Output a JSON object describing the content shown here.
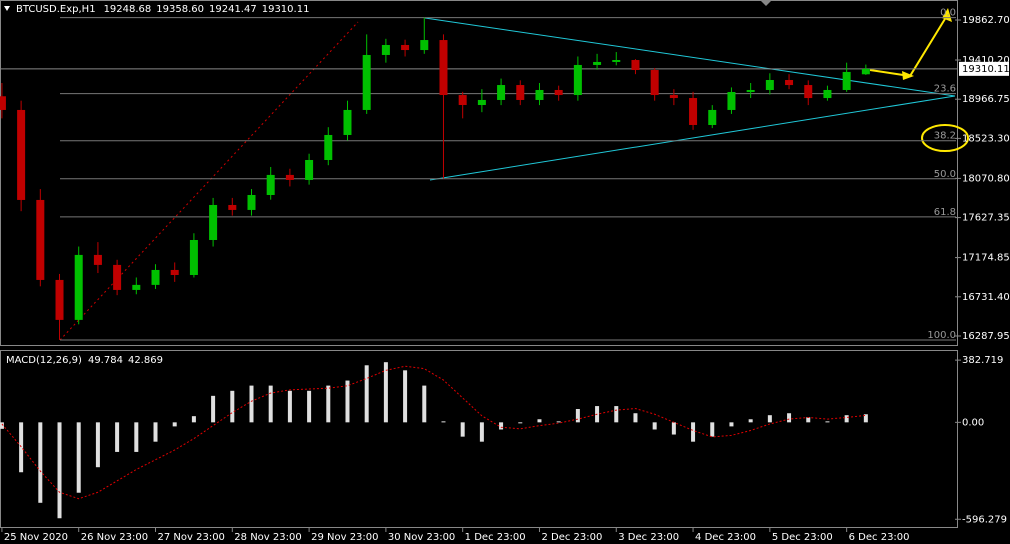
{
  "chart_data": [
    {
      "type": "candlestick",
      "title": "BTCUSD.Exp,H1",
      "title_values": [
        "19248.68",
        "19358.60",
        "19241.47",
        "19310.11"
      ],
      "x": [
        0,
        6,
        12,
        18,
        24,
        30,
        36,
        42,
        48,
        54,
        60,
        66,
        72,
        78,
        84,
        90,
        96,
        102,
        108,
        114,
        120,
        126,
        132,
        138,
        144,
        150,
        156,
        162,
        168,
        174,
        180,
        186,
        192,
        198,
        204,
        210,
        216,
        222,
        228,
        234,
        240,
        246,
        252,
        258,
        264,
        270
      ],
      "open": [
        19000,
        18845,
        17827,
        16922,
        16470,
        17205,
        17092,
        16809,
        16866,
        17035,
        16978,
        17374,
        17770,
        17714,
        17883,
        18110,
        18053,
        18279,
        18562,
        18845,
        19467,
        19580,
        19523,
        19636,
        19014,
        18901,
        18958,
        19127,
        18958,
        19071,
        19014,
        19354,
        19388,
        19410,
        19297,
        19014,
        18980,
        18675,
        18845,
        19048,
        19071,
        19184,
        19127,
        18980,
        19071,
        19248.68
      ],
      "high": [
        19150,
        18950,
        17950,
        16990,
        17300,
        17350,
        17150,
        16950,
        17100,
        17120,
        17450,
        17850,
        17850,
        17950,
        18200,
        18180,
        18350,
        18650,
        18950,
        19700,
        19650,
        19640,
        19890,
        19700,
        19050,
        19080,
        19200,
        19180,
        19150,
        19120,
        19450,
        19480,
        19500,
        19420,
        19320,
        19080,
        19050,
        18900,
        19100,
        19150,
        19260,
        19250,
        19180,
        19120,
        19380,
        19358.6
      ],
      "low": [
        18750,
        17700,
        16850,
        16243,
        16420,
        17000,
        16750,
        16760,
        16820,
        16900,
        16950,
        17300,
        17650,
        17650,
        17830,
        17980,
        18000,
        18220,
        18500,
        18800,
        19380,
        19450,
        19480,
        18070,
        18750,
        18820,
        18900,
        18900,
        18900,
        18950,
        18950,
        19300,
        19350,
        19250,
        18950,
        18900,
        18620,
        18640,
        18800,
        18980,
        19020,
        19080,
        18900,
        18950,
        19050,
        19241.47
      ],
      "close": [
        18845,
        17827,
        16922,
        16470,
        17205,
        17092,
        16809,
        16866,
        17035,
        16978,
        17374,
        17770,
        17714,
        17883,
        18110,
        18053,
        18279,
        18562,
        18845,
        19467,
        19580,
        19523,
        19636,
        19014,
        18901,
        18958,
        19127,
        18958,
        19071,
        19014,
        19354,
        19388,
        19410,
        19297,
        19014,
        18980,
        18675,
        18845,
        19048,
        19071,
        19184,
        19127,
        18980,
        19071,
        19275,
        19310.11
      ],
      "up_color": "#00c000",
      "down_color": "#c00000",
      "xlim": [
        -0.6,
        298.8
      ],
      "ylim": [
        16186,
        20089
      ],
      "yticks": [
        {
          "value": 19862.7,
          "label": "19862.70"
        },
        {
          "value": 19410.2,
          "label": "19410.20"
        },
        18966.75,
        {
          "value": 18523.3,
          "label": "18523.30"
        },
        {
          "value": 18070.8,
          "label": "18070.80"
        },
        17627.35,
        17174.85,
        {
          "value": 16731.4,
          "label": "16731.40"
        },
        16287.95
      ],
      "current_price": {
        "value": 19310.11,
        "label": "19310.11"
      },
      "fibonacci": {
        "high": 19890,
        "low": 16243,
        "levels": [
          {
            "value": 0,
            "label": "0.0"
          },
          23.6,
          38.2,
          {
            "value": 50,
            "label": "50.0"
          },
          61.8,
          {
            "value": 100,
            "label": "100.0"
          }
        ]
      }
    },
    {
      "type": "macd",
      "title": "MACD(12,26,9)",
      "title_values": [
        "49.784",
        "42.869"
      ],
      "x": [
        0,
        6,
        12,
        18,
        24,
        30,
        36,
        42,
        48,
        54,
        60,
        66,
        72,
        78,
        84,
        90,
        96,
        102,
        108,
        114,
        120,
        126,
        132,
        138,
        144,
        150,
        156,
        162,
        168,
        174,
        180,
        186,
        192,
        198,
        204,
        210,
        216,
        222,
        228,
        234,
        240,
        246,
        252,
        258,
        264,
        270
      ],
      "histogram": [
        -40,
        -307,
        -495,
        -590,
        -433,
        -276,
        -182,
        -182,
        -119,
        -25,
        38,
        163,
        194,
        226,
        226,
        194,
        194,
        226,
        257,
        351,
        370,
        320,
        226,
        6,
        -88,
        -119,
        -44,
        -6,
        19,
        6,
        82,
        100,
        100,
        56,
        -44,
        -75,
        -119,
        -88,
        -25,
        19,
        44,
        56,
        31,
        6,
        44,
        49.784
      ],
      "signal": [
        -10,
        -150,
        -300,
        -430,
        -470,
        -430,
        -360,
        -290,
        -230,
        -170,
        -100,
        -20,
        60,
        130,
        180,
        200,
        205,
        210,
        225,
        270,
        320,
        345,
        330,
        260,
        150,
        40,
        -30,
        -40,
        -20,
        -5,
        20,
        50,
        75,
        85,
        50,
        0,
        -50,
        -90,
        -80,
        -50,
        -10,
        20,
        30,
        20,
        30,
        42.869
      ],
      "histogram_color": "#e0e0e0",
      "signal_color": "#e00000",
      "xlim": [
        -0.6,
        298.8
      ],
      "ylim": [
        -650,
        445
      ],
      "yticks": [
        382.719,
        {
          "value": 0,
          "label": "0.00"
        },
        -596.279
      ],
      "xticks": [
        {
          "value": 0,
          "label": "25 Nov 2020"
        },
        {
          "value": 24,
          "label": "26 Nov 23:00"
        },
        {
          "value": 48,
          "label": "27 Nov 23:00"
        },
        {
          "value": 72,
          "label": "28 Nov 23:00"
        },
        {
          "value": 96,
          "label": "29 Nov 23:00"
        },
        {
          "value": 120,
          "label": "30 Nov 23:00"
        },
        {
          "value": 144,
          "label": "1 Dec 23:00"
        },
        {
          "value": 168,
          "label": "2 Dec 23:00"
        },
        {
          "value": 192,
          "label": "3 Dec 23:00"
        },
        {
          "value": 216,
          "label": "4 Dec 23:00"
        },
        {
          "value": 240,
          "label": "5 Dec 23:00"
        },
        {
          "value": 264,
          "label": "6 Dec 23:00"
        }
      ]
    }
  ]
}
